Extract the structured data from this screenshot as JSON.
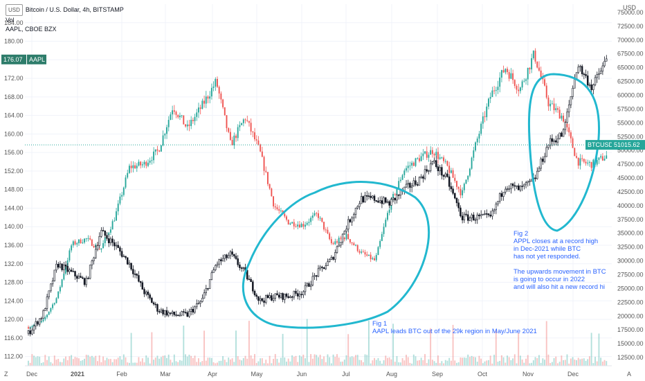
{
  "legend": {
    "currency": "USD",
    "title": "Bitcoin / U.S. Dollar, 4h, BITSTAMP",
    "vol": "Vol",
    "compare": "AAPL, CBOE BZX"
  },
  "badges": {
    "left_unit": "USD",
    "right_unit": "USD",
    "z": "Z",
    "a": "A"
  },
  "annotations": {
    "fig1": [
      "Fig 1",
      "AAPL leads BTC out of the 29k region in May/June 2021"
    ],
    "fig2": [
      "Fig 2",
      "APPL closes at a record high",
      "in Dec-2021 while BTC",
      "has not yet responded.",
      "",
      "The upwards movement in BTC",
      "is going to occur in 2022",
      "and will also hit a new record hi"
    ]
  },
  "colors": {
    "up": "#26a69a",
    "down": "#ef5350",
    "aapl": "#131722",
    "circle": "#22b8cf",
    "annotation": "#2962ff",
    "btc_tag": "#26a69a",
    "aapl_tag": "#2e7d6b"
  },
  "chart_data": {
    "type": "candlestick",
    "left_axis": {
      "label": "USD",
      "ticks": [
        112,
        116,
        120,
        124,
        128,
        132,
        136,
        140,
        144,
        148,
        152,
        156,
        160,
        164,
        168,
        172,
        176,
        180,
        184
      ],
      "range": [
        110,
        188
      ]
    },
    "right_axis": {
      "label": "USD",
      "ticks": [
        12500,
        15000,
        17500,
        20000,
        22500,
        25000,
        27500,
        30000,
        32500,
        35000,
        37500,
        40000,
        42500,
        45000,
        47500,
        50000,
        52500,
        55000,
        57500,
        60000,
        62500,
        65000,
        67500,
        70000,
        72500,
        75000
      ],
      "range": [
        11000,
        76500
      ]
    },
    "x_axis": {
      "labels": [
        "Dec",
        "2021",
        "Feb",
        "Mar",
        "Apr",
        "May",
        "Jun",
        "Jul",
        "Aug",
        "Sep",
        "Oct",
        "Nov",
        "Dec"
      ]
    },
    "series": [
      {
        "name": "Bitcoin / U.S. Dollar, 4h, BITSTAMP",
        "axis": "right",
        "last": "51015.62",
        "tag": "BTCUSD",
        "x": [
          "Nov-25",
          "Dec-10",
          "Dec-25",
          "Jan-05",
          "Jan-15",
          "Jan-25",
          "Feb-05",
          "Feb-15",
          "Feb-25",
          "Mar-05",
          "Mar-15",
          "Mar-25",
          "Apr-05",
          "Apr-15",
          "Apr-25",
          "May-05",
          "May-12",
          "May-19",
          "May-25",
          "Jun-05",
          "Jun-15",
          "Jun-25",
          "Jul-05",
          "Jul-15",
          "Jul-21",
          "Aug-01",
          "Aug-15",
          "Aug-25",
          "Sep-05",
          "Sep-15",
          "Sep-25",
          "Oct-05",
          "Oct-15",
          "Oct-20",
          "Nov-01",
          "Nov-10",
          "Nov-20",
          "Dec-01",
          "Dec-10",
          "Dec-20",
          "Dec-28"
        ],
        "y": [
          18000,
          19000,
          23500,
          33000,
          34000,
          32000,
          38000,
          47000,
          47500,
          50000,
          58000,
          54000,
          58000,
          62500,
          51000,
          56000,
          50000,
          40000,
          37000,
          36500,
          38500,
          33000,
          34500,
          31500,
          30000,
          40000,
          46500,
          48500,
          50000,
          47000,
          42000,
          51500,
          60000,
          65000,
          61000,
          67500,
          58500,
          56000,
          48000,
          47500,
          49000
        ]
      },
      {
        "name": "AAPL, CBOE BZX",
        "axis": "left",
        "last": "176.07",
        "tag": "AAPL",
        "x": [
          "Nov-25",
          "Dec-10",
          "Dec-25",
          "Jan-05",
          "Jan-15",
          "Jan-25",
          "Feb-05",
          "Feb-15",
          "Feb-25",
          "Mar-05",
          "Mar-15",
          "Mar-25",
          "Apr-05",
          "Apr-15",
          "Apr-25",
          "May-05",
          "May-12",
          "May-19",
          "May-25",
          "Jun-05",
          "Jun-15",
          "Jun-25",
          "Jul-05",
          "Jul-15",
          "Jul-21",
          "Aug-01",
          "Aug-15",
          "Aug-25",
          "Sep-05",
          "Sep-15",
          "Sep-25",
          "Oct-05",
          "Oct-15",
          "Oct-20",
          "Nov-01",
          "Nov-10",
          "Nov-20",
          "Dec-01",
          "Dec-10",
          "Dec-20",
          "Dec-28"
        ],
        "y": [
          117,
          121,
          132,
          130,
          128,
          139,
          136,
          132,
          126,
          122,
          121,
          121,
          124,
          132,
          134,
          130,
          124,
          125,
          125,
          126,
          130,
          133,
          140,
          146,
          146,
          145,
          148,
          150,
          154,
          150,
          142,
          142,
          142,
          149,
          148,
          150,
          158,
          160,
          175,
          170,
          176
        ]
      }
    ]
  }
}
